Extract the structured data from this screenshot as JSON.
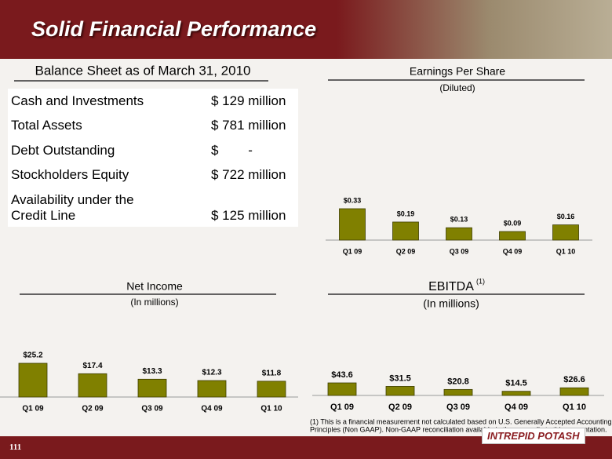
{
  "header": {
    "title": "Solid Financial Performance"
  },
  "balance_sheet": {
    "title": "Balance Sheet as of March 31, 2010",
    "rows": [
      [
        "Cash and Investments",
        "$ 129 million"
      ],
      [
        "Total Assets",
        "$ 781 million"
      ],
      [
        "Debt Outstanding",
        "$        -"
      ],
      [
        "Stockholders Equity",
        "$ 722 million"
      ],
      [
        "Availability under the Credit Line",
        "$ 125 million"
      ]
    ]
  },
  "chart_data": [
    {
      "type": "bar",
      "title": "Earnings Per Share",
      "subtitle": "(Diluted)",
      "categories": [
        "Q1 09",
        "Q2 09",
        "Q3 09",
        "Q4 09",
        "Q1 10"
      ],
      "values": [
        0.33,
        0.19,
        0.13,
        0.09,
        0.16
      ],
      "value_labels": [
        "$0.33",
        "$0.19",
        "$0.13",
        "$0.09",
        "$0.16"
      ],
      "color": "#808000"
    },
    {
      "type": "bar",
      "title": "Net Income",
      "subtitle": "(In millions)",
      "categories": [
        "Q1 09",
        "Q2 09",
        "Q3 09",
        "Q4 09",
        "Q1 10"
      ],
      "values": [
        25.2,
        17.4,
        13.3,
        12.3,
        11.8
      ],
      "value_labels": [
        "$25.2",
        "$17.4",
        "$13.3",
        "$12.3",
        "$11.8"
      ],
      "color": "#808000"
    },
    {
      "type": "bar",
      "title": "EBITDA",
      "title_note": "(1)",
      "subtitle": "(In millions)",
      "categories": [
        "Q1 09",
        "Q2 09",
        "Q3 09",
        "Q4 09",
        "Q1 10"
      ],
      "values": [
        43.6,
        31.5,
        20.8,
        14.5,
        26.6
      ],
      "value_labels": [
        "$43.6",
        "$31.5",
        "$20.8",
        "$14.5",
        "$26.6"
      ],
      "color": "#808000"
    }
  ],
  "footnote": [
    "(1)   This is a financial  measurement not calculated based on U.S. Generally Accepted Accounting",
    "Principles (Non GAAP).   Non-GAAP reconciliation available in the appendix to this presentation."
  ],
  "footer": {
    "page": "111",
    "logo": "INTREPID POTASH"
  }
}
